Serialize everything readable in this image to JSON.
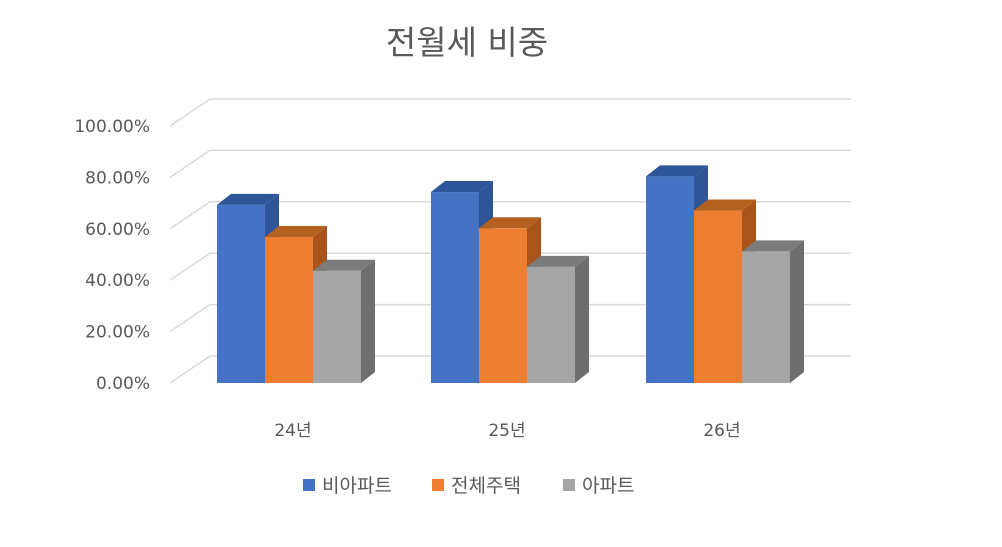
{
  "chart_data": {
    "type": "bar",
    "title": "전월세 비중",
    "categories": [
      "24년",
      "25년",
      "26년"
    ],
    "series": [
      {
        "name": "비아파트",
        "values": [
          0.693,
          0.743,
          0.804
        ],
        "color": "#4472C4",
        "side_color": "#2F5597",
        "top_color": "#2E5597"
      },
      {
        "name": "전체주택",
        "values": [
          0.568,
          0.602,
          0.671
        ],
        "color": "#ED7D31",
        "side_color": "#A9541A",
        "top_color": "#B4601F"
      },
      {
        "name": "아파트",
        "values": [
          0.437,
          0.452,
          0.512
        ],
        "color": "#A5A5A5",
        "side_color": "#6E6E6E",
        "top_color": "#7B7B7B"
      }
    ],
    "y_ticks": [
      "0.00%",
      "20.00%",
      "40.00%",
      "60.00%",
      "80.00%",
      "100.00%"
    ],
    "ylim": [
      0,
      1
    ],
    "grid": true,
    "legend_position": "bottom"
  }
}
